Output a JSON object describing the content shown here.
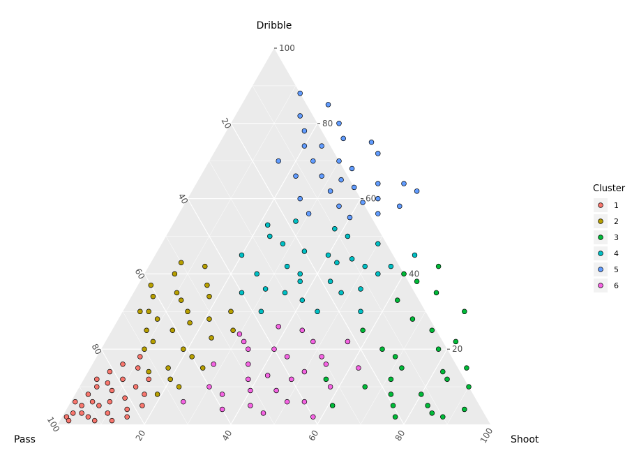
{
  "chart_data": {
    "type": "scatter",
    "subtype": "ternary",
    "axes": {
      "top": "Dribble",
      "left": "Pass",
      "right": "Shoot"
    },
    "ticks": {
      "dribble": [
        "20",
        "40",
        "60",
        "80",
        "100"
      ],
      "pass": [
        "20",
        "40",
        "60",
        "80",
        "100"
      ],
      "shoot": [
        "20",
        "40",
        "60",
        "80",
        "100"
      ]
    },
    "legend": {
      "title": "Cluster",
      "position": "right",
      "items": [
        {
          "label": "1",
          "color": "#F8766D"
        },
        {
          "label": "2",
          "color": "#B79F00"
        },
        {
          "label": "3",
          "color": "#00BA38"
        },
        {
          "label": "4",
          "color": "#00BFC4"
        },
        {
          "label": "5",
          "color": "#619CFF"
        },
        {
          "label": "6",
          "color": "#F564E3"
        }
      ]
    },
    "series": [
      {
        "name": "1",
        "points": [
          [
            1,
            2
          ],
          [
            2,
            3
          ],
          [
            3,
            5
          ],
          [
            2,
            1
          ],
          [
            4,
            3
          ],
          [
            5,
            6
          ],
          [
            6,
            2
          ],
          [
            3,
            8
          ],
          [
            7,
            5
          ],
          [
            8,
            9
          ],
          [
            10,
            3
          ],
          [
            9,
            12
          ],
          [
            5,
            14
          ],
          [
            12,
            7
          ],
          [
            13,
            10
          ],
          [
            11,
            15
          ],
          [
            6,
            11
          ],
          [
            8,
            1
          ],
          [
            14,
            4
          ],
          [
            15,
            12
          ],
          [
            4,
            10
          ],
          [
            7,
            16
          ],
          [
            10,
            18
          ],
          [
            12,
            1
          ],
          [
            16,
            8
          ],
          [
            3,
            12
          ],
          [
            9,
            6
          ],
          [
            15,
            2
          ],
          [
            1,
            6
          ],
          [
            17,
            5
          ]
        ]
      },
      {
        "name": "2",
        "points": [
          [
            3,
            37
          ],
          [
            5,
            34
          ],
          [
            7,
            40
          ],
          [
            6,
            30
          ],
          [
            9,
            28
          ],
          [
            10,
            35
          ],
          [
            12,
            33
          ],
          [
            14,
            25
          ],
          [
            11,
            22
          ],
          [
            8,
            25
          ],
          [
            15,
            30
          ],
          [
            17,
            27
          ],
          [
            19,
            20
          ],
          [
            20,
            12
          ],
          [
            18,
            15
          ],
          [
            14,
            14
          ],
          [
            22,
            18
          ],
          [
            24,
            23
          ],
          [
            21,
            28
          ],
          [
            16,
            37
          ],
          [
            18,
            34
          ],
          [
            13,
            42
          ],
          [
            7,
            43
          ],
          [
            4,
            30
          ],
          [
            26,
            15
          ],
          [
            23,
            10
          ],
          [
            19,
            8
          ],
          [
            10,
            20
          ],
          [
            28,
            25
          ],
          [
            25,
            30
          ]
        ]
      },
      {
        "name": "3",
        "points": [
          [
            75,
            5
          ],
          [
            80,
            8
          ],
          [
            85,
            3
          ],
          [
            90,
            10
          ],
          [
            72,
            15
          ],
          [
            78,
            20
          ],
          [
            82,
            14
          ],
          [
            88,
            2
          ],
          [
            65,
            20
          ],
          [
            68,
            28
          ],
          [
            70,
            35
          ],
          [
            60,
            40
          ],
          [
            62,
            33
          ],
          [
            66,
            10
          ],
          [
            74,
            25
          ],
          [
            84,
            12
          ],
          [
            92,
            4
          ],
          [
            77,
            2
          ],
          [
            69,
            18
          ],
          [
            58,
            25
          ],
          [
            56,
            12
          ],
          [
            61,
            5
          ],
          [
            73,
            8
          ],
          [
            87,
            15
          ],
          [
            81,
            22
          ],
          [
            64,
            38
          ],
          [
            67,
            42
          ],
          [
            79,
            30
          ],
          [
            71,
            12
          ],
          [
            83,
            5
          ]
        ]
      },
      {
        "name": "4",
        "points": [
          [
            20,
            45
          ],
          [
            24,
            50
          ],
          [
            28,
            48
          ],
          [
            32,
            42
          ],
          [
            36,
            40
          ],
          [
            40,
            45
          ],
          [
            44,
            38
          ],
          [
            48,
            35
          ],
          [
            52,
            36
          ],
          [
            56,
            42
          ],
          [
            30,
            36
          ],
          [
            26,
            40
          ],
          [
            34,
            46
          ],
          [
            38,
            52
          ],
          [
            42,
            50
          ],
          [
            46,
            44
          ],
          [
            50,
            48
          ],
          [
            54,
            40
          ],
          [
            22,
            53
          ],
          [
            28,
            54
          ],
          [
            35,
            35
          ],
          [
            45,
            30
          ],
          [
            55,
            30
          ],
          [
            40,
            33
          ],
          [
            32,
            30
          ],
          [
            25,
            35
          ],
          [
            60,
            45
          ],
          [
            50,
            42
          ],
          [
            43,
            43
          ],
          [
            37,
            38
          ]
        ]
      },
      {
        "name": "5",
        "points": [
          [
            12,
            88
          ],
          [
            15,
            82
          ],
          [
            18,
            78
          ],
          [
            20,
            74
          ],
          [
            24,
            70
          ],
          [
            28,
            66
          ],
          [
            32,
            62
          ],
          [
            36,
            58
          ],
          [
            40,
            55
          ],
          [
            44,
            60
          ],
          [
            48,
            64
          ],
          [
            52,
            62
          ],
          [
            22,
            66
          ],
          [
            26,
            60
          ],
          [
            30,
            56
          ],
          [
            34,
            68
          ],
          [
            38,
            72
          ],
          [
            42,
            64
          ],
          [
            16,
            70
          ],
          [
            46,
            56
          ],
          [
            50,
            58
          ],
          [
            20,
            85
          ],
          [
            25,
            80
          ],
          [
            28,
            76
          ],
          [
            33,
            65
          ],
          [
            37,
            63
          ],
          [
            41,
            59
          ],
          [
            30,
            70
          ],
          [
            24,
            74
          ],
          [
            35,
            75
          ]
        ]
      },
      {
        "name": "6",
        "points": [
          [
            30,
            10
          ],
          [
            34,
            8
          ],
          [
            38,
            12
          ],
          [
            42,
            5
          ],
          [
            46,
            9
          ],
          [
            50,
            14
          ],
          [
            54,
            6
          ],
          [
            58,
            10
          ],
          [
            36,
            16
          ],
          [
            40,
            20
          ],
          [
            44,
            18
          ],
          [
            48,
            22
          ],
          [
            52,
            18
          ],
          [
            32,
            22
          ],
          [
            28,
            16
          ],
          [
            56,
            22
          ],
          [
            46,
            3
          ],
          [
            36,
            4
          ],
          [
            26,
            6
          ],
          [
            40,
            9
          ],
          [
            50,
            6
          ],
          [
            44,
            25
          ],
          [
            38,
            26
          ],
          [
            30,
            24
          ],
          [
            62,
            15
          ],
          [
            58,
            2
          ],
          [
            34,
            20
          ],
          [
            42,
            13
          ],
          [
            48,
            12
          ],
          [
            54,
            16
          ]
        ]
      }
    ]
  }
}
